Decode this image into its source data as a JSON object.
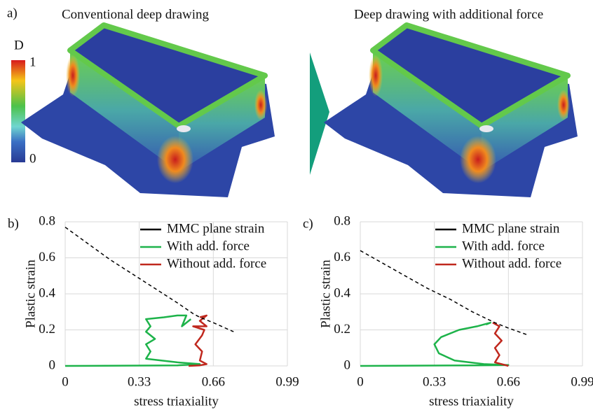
{
  "figure": {
    "panel_label": "a)",
    "left_title": "Conventional deep drawing",
    "right_title": "Deep drawing with additional force",
    "colorbar": {
      "title": "D",
      "max_label": "1",
      "min_label": "0"
    }
  },
  "chart_data": [
    {
      "type": "line",
      "panel_label": "b)",
      "xlabel": "stress triaxiality",
      "ylabel": "Plastic strain",
      "xlim": [
        0,
        0.99
      ],
      "xticks": [
        0,
        0.33,
        0.66,
        0.99
      ],
      "ylim": [
        0,
        0.8
      ],
      "yticks": [
        0,
        0.2,
        0.4,
        0.6,
        0.8
      ],
      "grid": true,
      "legend": "upper right",
      "series": [
        {
          "name": "MMC plane strain",
          "color": "#000000",
          "style": "dashed",
          "x": [
            0,
            0.1,
            0.2,
            0.3,
            0.4,
            0.5,
            0.57,
            0.6,
            0.66,
            0.75
          ],
          "values": [
            0.77,
            0.68,
            0.59,
            0.51,
            0.43,
            0.35,
            0.29,
            0.27,
            0.24,
            0.19
          ]
        },
        {
          "name": "With add. force",
          "color": "#1db34a",
          "style": "solid",
          "x": [
            0,
            0.5,
            0.6,
            0.5,
            0.36,
            0.38,
            0.36,
            0.4,
            0.36,
            0.38,
            0.36,
            0.44,
            0.5,
            0.54,
            0.52,
            0.56
          ],
          "values": [
            0,
            0.003,
            0.01,
            0.02,
            0.04,
            0.08,
            0.12,
            0.15,
            0.19,
            0.22,
            0.26,
            0.27,
            0.28,
            0.28,
            0.22,
            0.26
          ]
        },
        {
          "name": "Without add. force",
          "color": "#c0281e",
          "style": "solid",
          "x": [
            0.55,
            0.6,
            0.63,
            0.6,
            0.61,
            0.58,
            0.61,
            0.62,
            0.57,
            0.63,
            0.6,
            0.63,
            0.6
          ],
          "values": [
            0,
            0.003,
            0.01,
            0.03,
            0.08,
            0.12,
            0.17,
            0.2,
            0.22,
            0.22,
            0.25,
            0.28,
            0.27
          ]
        }
      ]
    },
    {
      "type": "line",
      "panel_label": "c)",
      "xlabel": "stress triaxiality",
      "ylabel": "Plastic strain",
      "xlim": [
        0,
        0.99
      ],
      "xticks": [
        0,
        0.33,
        0.66,
        0.99
      ],
      "ylim": [
        0,
        0.8
      ],
      "yticks": [
        0,
        0.2,
        0.4,
        0.6,
        0.8
      ],
      "grid": true,
      "legend": "upper right",
      "series": [
        {
          "name": "MMC plane strain",
          "color": "#000000",
          "style": "dashed",
          "x": [
            0,
            0.1,
            0.2,
            0.3,
            0.4,
            0.5,
            0.6,
            0.66,
            0.75
          ],
          "values": [
            0.64,
            0.57,
            0.5,
            0.43,
            0.37,
            0.3,
            0.24,
            0.21,
            0.17
          ]
        },
        {
          "name": "With add. force",
          "color": "#1db34a",
          "style": "solid",
          "x": [
            0,
            0.5,
            0.66,
            0.55,
            0.42,
            0.35,
            0.33,
            0.36,
            0.44,
            0.52,
            0.58,
            0.56
          ],
          "values": [
            0,
            0.003,
            0.005,
            0.01,
            0.03,
            0.07,
            0.12,
            0.16,
            0.2,
            0.22,
            0.24,
            0.23
          ]
        },
        {
          "name": "Without add. force",
          "color": "#c0281e",
          "style": "solid",
          "x": [
            0.66,
            0.6,
            0.62,
            0.6,
            0.63,
            0.6,
            0.62,
            0.59
          ],
          "values": [
            0,
            0.02,
            0.06,
            0.1,
            0.14,
            0.18,
            0.22,
            0.24
          ]
        }
      ]
    }
  ]
}
